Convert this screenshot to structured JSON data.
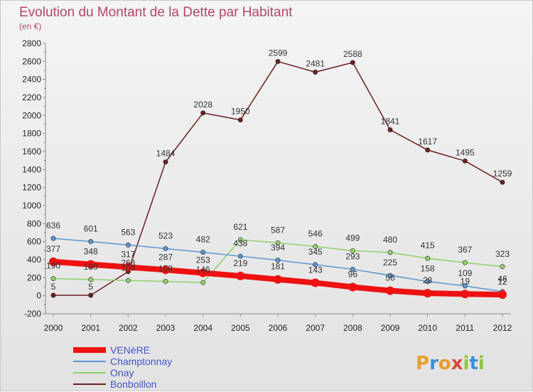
{
  "title": "Evolution du Montant de la Dette par Habitant",
  "subtitle": "(en €)",
  "logo": {
    "text": "Proxiti",
    "letters": [
      "P",
      "r",
      "o",
      "x",
      "i",
      "t",
      "i"
    ],
    "colors": [
      "#e8a02c",
      "#3a8fd6",
      "#e8a02c",
      "#d94b3c",
      "#8ec63f",
      "#3a8fd6",
      "#8ec63f"
    ]
  },
  "chart_data": {
    "type": "line",
    "x": [
      "2000",
      "2001",
      "2002",
      "2003",
      "2004",
      "2005",
      "2006",
      "2007",
      "2008",
      "2009",
      "2010",
      "2011",
      "2012"
    ],
    "ylim": [
      -200,
      2800
    ],
    "yticks": [
      -200,
      0,
      200,
      400,
      600,
      800,
      1000,
      1200,
      1400,
      1600,
      1800,
      2000,
      2200,
      2400,
      2600,
      2800
    ],
    "grid": false,
    "legend_placement": "bottom-left",
    "series": [
      {
        "name": "VENèRE",
        "color": "#ee1111",
        "values": [
          377,
          348,
          317,
          287,
          253,
          219,
          181,
          143,
          96,
          56,
          28,
          19,
          12
        ]
      },
      {
        "name": "Champtonnay",
        "color": "#5b95cf",
        "values": [
          636,
          601,
          563,
          523,
          482,
          438,
          394,
          345,
          293,
          225,
          158,
          109,
          46
        ]
      },
      {
        "name": "Onay",
        "color": "#8fd16a",
        "values": [
          190,
          180,
          169,
          158,
          146,
          621,
          587,
          546,
          499,
          480,
          415,
          367,
          323
        ]
      },
      {
        "name": "Bonboillon",
        "color": "#6b1f1f",
        "values": [
          5,
          5,
          268,
          1484,
          2028,
          1950,
          2599,
          2481,
          2588,
          1841,
          1617,
          1495,
          1259
        ]
      }
    ]
  }
}
